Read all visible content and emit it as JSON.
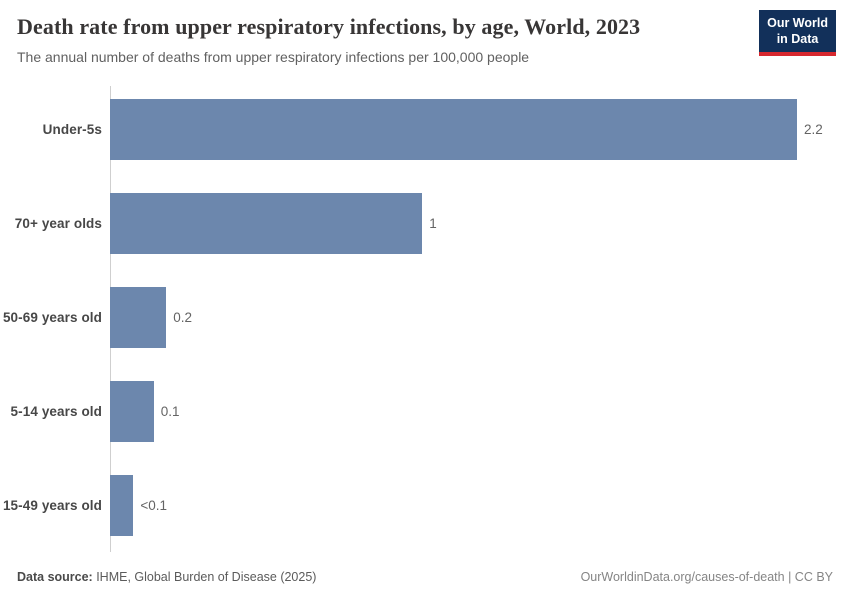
{
  "header": {
    "title": "Death rate from upper respiratory infections, by age, World, 2023",
    "subtitle": "The annual number of deaths from upper respiratory infections per 100,000 people",
    "logo": {
      "line1": "Our World",
      "line2": "in Data",
      "bg_color": "#12305a",
      "accent_color": "#d7282f"
    }
  },
  "chart_data": {
    "type": "bar",
    "orientation": "horizontal",
    "title": "Death rate from upper respiratory infections, by age, World, 2023",
    "xlabel": "",
    "ylabel": "",
    "categories": [
      "Under-5s",
      "70+ year olds",
      "50-69 years old",
      "5-14 years old",
      "15-49 years old"
    ],
    "values": [
      2.2,
      1.0,
      0.18,
      0.14,
      0.075
    ],
    "value_labels": [
      "2.2",
      "1",
      "0.2",
      "0.1",
      "<0.1"
    ],
    "xlim": [
      0,
      2.2
    ],
    "grid": false,
    "legend": "none",
    "bar_color": "#6c87ad",
    "axis_color": "#cfcfcf"
  },
  "footer": {
    "source_label": "Data source:",
    "source_text": " IHME, Global Burden of Disease (2025)",
    "credit": "OurWorldinData.org/causes-of-death | CC BY"
  }
}
